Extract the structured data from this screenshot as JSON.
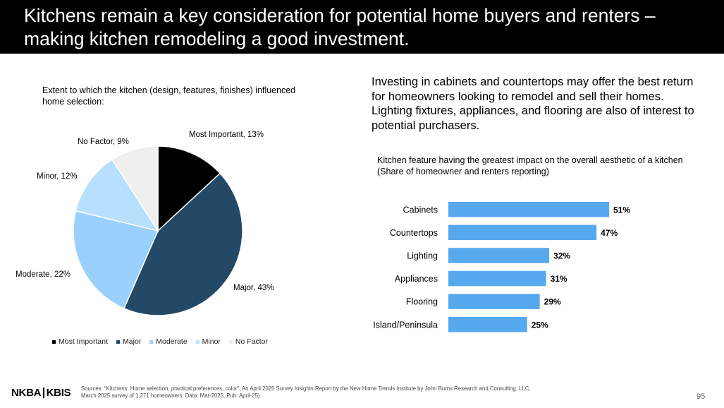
{
  "header": {
    "title": "Kitchens remain a key consideration for potential home buyers and renters – making kitchen remodeling a good investment."
  },
  "intro_text": "Investing in cabinets and countertops may offer the best return for homeowners looking to remodel and sell their homes. Lighting fixtures, appliances, and flooring are also of interest to potential purchasers.",
  "chart_data": [
    {
      "type": "pie",
      "title": "Extent to which the kitchen (design, features, finishes) influenced home selection:",
      "categories": [
        "Most Important",
        "Major",
        "Moderate",
        "Minor",
        "No Factor"
      ],
      "values": [
        13,
        43,
        22,
        12,
        9
      ],
      "data_labels": [
        "Most Important, 13%",
        "Major, 43%",
        "Moderate, 22%",
        "Minor, 12%",
        "No Factor, 9%"
      ],
      "colors": [
        "#000000",
        "#234967",
        "#9ad0fd",
        "#b7e0ff",
        "#efefef"
      ],
      "legend_position": "bottom"
    },
    {
      "type": "bar",
      "orientation": "horizontal",
      "title": "Kitchen feature having the greatest impact on the overall aesthetic of a kitchen (Share of homeowner and renters reporting)",
      "categories": [
        "Cabinets",
        "Countertops",
        "Lighting",
        "Appliances",
        "Flooring",
        "Island/Peninsula"
      ],
      "values": [
        51,
        47,
        32,
        31,
        29,
        25
      ],
      "data_labels": [
        "51%",
        "47%",
        "32%",
        "31%",
        "29%",
        "25%"
      ],
      "color": "#56a8ef",
      "xlim": [
        0,
        51
      ]
    }
  ],
  "footer": {
    "logo_left": "NKBA",
    "logo_right": "KBIS",
    "sources": "Sources: “Kitchens: Home selection, practical preferences, color”, An April 2025 Survey Insights Report by the New Home Trends Institute by John Burns Research and Consulting, LLC, March 2025 survey of 1,271 homeowners.  Data: Mar-2025, Pub: April-25)",
    "page_number": "95"
  }
}
